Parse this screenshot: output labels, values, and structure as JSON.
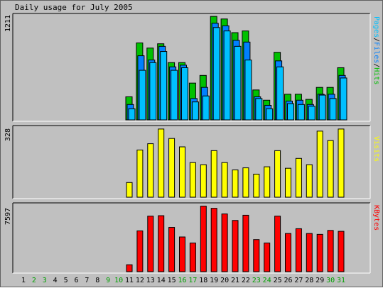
{
  "title": "Daily usage for July 2005",
  "colors": {
    "background": "#c0c0c0",
    "hits": "#00c000",
    "files": "#0080ff",
    "pages": "#00c0ff",
    "visits": "#ffff00",
    "kbytes": "#ff0000",
    "weekend_day": "#00a000",
    "weekday_day": "#000000"
  },
  "panels": {
    "hits": {
      "max_label": "1211",
      "legend": [
        "Pages",
        "/",
        "Files",
        "/",
        "Hits"
      ]
    },
    "visits": {
      "max_label": "328",
      "legend": "Visits"
    },
    "kbytes": {
      "max_label": "7597",
      "legend": "KBytes"
    }
  },
  "chart_data": [
    {
      "type": "bar",
      "panel": "hits",
      "categories": [
        "1",
        "2",
        "3",
        "4",
        "5",
        "6",
        "7",
        "8",
        "9",
        "10",
        "11",
        "12",
        "13",
        "14",
        "15",
        "16",
        "17",
        "18",
        "19",
        "20",
        "21",
        "22",
        "23",
        "24",
        "25",
        "26",
        "27",
        "28",
        "29",
        "30",
        "31"
      ],
      "ylim": [
        0,
        1211
      ],
      "series": [
        {
          "name": "Hits",
          "values": [
            0,
            0,
            0,
            0,
            0,
            0,
            0,
            0,
            0,
            0,
            270,
            900,
            840,
            890,
            670,
            670,
            430,
            520,
            1210,
            1180,
            1020,
            1040,
            350,
            230,
            790,
            300,
            300,
            240,
            380,
            380,
            610
          ]
        },
        {
          "name": "Files",
          "values": [
            0,
            0,
            0,
            0,
            0,
            0,
            0,
            0,
            0,
            0,
            180,
            750,
            700,
            860,
            620,
            640,
            250,
            380,
            1130,
            1100,
            930,
            910,
            270,
            170,
            690,
            220,
            230,
            180,
            300,
            300,
            520
          ]
        },
        {
          "name": "Pages",
          "values": [
            0,
            0,
            0,
            0,
            0,
            0,
            0,
            0,
            0,
            0,
            130,
            580,
            670,
            800,
            580,
            610,
            210,
            280,
            1080,
            1040,
            860,
            700,
            250,
            130,
            620,
            190,
            180,
            160,
            290,
            250,
            490
          ]
        }
      ]
    },
    {
      "type": "bar",
      "panel": "visits",
      "categories": [
        "1",
        "2",
        "3",
        "4",
        "5",
        "6",
        "7",
        "8",
        "9",
        "10",
        "11",
        "12",
        "13",
        "14",
        "15",
        "16",
        "17",
        "18",
        "19",
        "20",
        "21",
        "22",
        "23",
        "24",
        "25",
        "26",
        "27",
        "28",
        "29",
        "30",
        "31"
      ],
      "ylim": [
        0,
        328
      ],
      "series": [
        {
          "name": "Visits",
          "values": [
            0,
            0,
            0,
            0,
            0,
            0,
            0,
            0,
            0,
            0,
            70,
            225,
            255,
            325,
            280,
            240,
            165,
            155,
            222,
            165,
            130,
            140,
            110,
            145,
            222,
            138,
            185,
            155,
            315,
            270,
            325
          ]
        }
      ]
    },
    {
      "type": "bar",
      "panel": "kbytes",
      "categories": [
        "1",
        "2",
        "3",
        "4",
        "5",
        "6",
        "7",
        "8",
        "9",
        "10",
        "11",
        "12",
        "13",
        "14",
        "15",
        "16",
        "17",
        "18",
        "19",
        "20",
        "21",
        "22",
        "23",
        "24",
        "25",
        "26",
        "27",
        "28",
        "29",
        "30",
        "31"
      ],
      "ylim": [
        0,
        7597
      ],
      "series": [
        {
          "name": "KBytes",
          "values": [
            0,
            0,
            0,
            0,
            0,
            0,
            0,
            0,
            0,
            0,
            800,
            4700,
            6400,
            6450,
            5100,
            4000,
            3300,
            7550,
            7300,
            6650,
            5900,
            6500,
            3700,
            3300,
            6400,
            4400,
            4950,
            4400,
            4300,
            4750,
            4650
          ]
        }
      ]
    }
  ],
  "weekend_days": [
    2,
    3,
    9,
    10,
    16,
    17,
    23,
    24,
    30,
    31
  ]
}
